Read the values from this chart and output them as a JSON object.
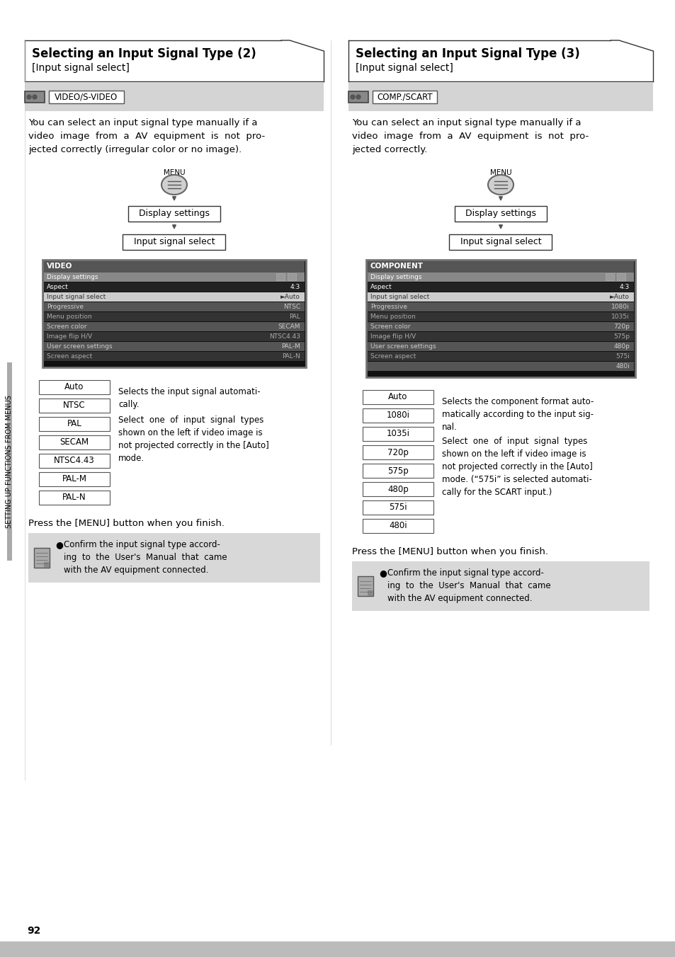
{
  "page_bg": "#ffffff",
  "left_panel": {
    "title": "Selecting an Input Signal Type (2)",
    "subtitle": "[Input signal select]",
    "badge": "VIDEO/S-VIDEO",
    "description": "You can select an input signal type manually if a\nvideo  image  from  a  AV  equipment  is  not  pro-\njected correctly (irregular color or no image).",
    "screen_title": "VIDEO",
    "screen_rows": [
      [
        "Display settings",
        "",
        true
      ],
      [
        "Aspect",
        "4:3",
        false
      ],
      [
        "Input signal select",
        "►Auto",
        false
      ],
      [
        "Progressive",
        "NTSC",
        false
      ],
      [
        "Menu position",
        "PAL",
        false
      ],
      [
        "Screen color",
        "SECAM",
        false
      ],
      [
        "Image flip H/V",
        "NTSC4.43",
        false
      ],
      [
        "User screen settings",
        "PAL-M",
        false
      ],
      [
        "Screen aspect",
        "PAL-N",
        false
      ]
    ],
    "options": [
      "Auto",
      "NTSC",
      "PAL",
      "SECAM",
      "NTSC4.43",
      "PAL-M",
      "PAL-N"
    ],
    "opt_desc1": "Selects the input signal automati-\ncally.",
    "opt_desc2": "Select  one  of  input  signal  types\nshown on the left if video image is\nnot projected correctly in the [Auto]\nmode.",
    "press_text": "Press the [MENU] button when you finish.",
    "note": "Confirm the input signal type accord-\ning  to  the  User's  Manual  that  came\nwith the AV equipment connected."
  },
  "right_panel": {
    "title": "Selecting an Input Signal Type (3)",
    "subtitle": "[Input signal select]",
    "badge": "COMP./SCART",
    "description": "You can select an input signal type manually if a\nvideo  image  from  a  AV  equipment  is  not  pro-\njected correctly.",
    "screen_title": "COMPONENT",
    "screen_rows": [
      [
        "Display settings",
        "",
        true
      ],
      [
        "Aspect",
        "4:3",
        false
      ],
      [
        "Input signal select",
        "►Auto",
        false
      ],
      [
        "Progressive",
        "1080i",
        false
      ],
      [
        "Menu position",
        "1035i",
        false
      ],
      [
        "Screen color",
        "720p",
        false
      ],
      [
        "Image flip H/V",
        "575p",
        false
      ],
      [
        "User screen settings",
        "480p",
        false
      ],
      [
        "Screen aspect",
        "575i",
        false
      ],
      [
        "",
        "480i",
        false
      ]
    ],
    "options": [
      "Auto",
      "1080i",
      "1035i",
      "720p",
      "575p",
      "480p",
      "575i",
      "480i"
    ],
    "opt_desc1": "Selects the component format auto-\nmatically according to the input sig-\nnal.",
    "opt_desc2": "Select  one  of  input  signal  types\nshown on the left if video image is\nnot projected correctly in the [Auto]\nmode. (“575i” is selected automati-\ncally for the SCART input.)",
    "press_text": "Press the [MENU] button when you finish.",
    "note": "Confirm the input signal type accord-\ning  to  the  User's  Manual  that  came\nwith the AV equipment connected."
  },
  "side_label": "SETTING UP FUNCTIONS FROM MENUS",
  "page_number": "92"
}
